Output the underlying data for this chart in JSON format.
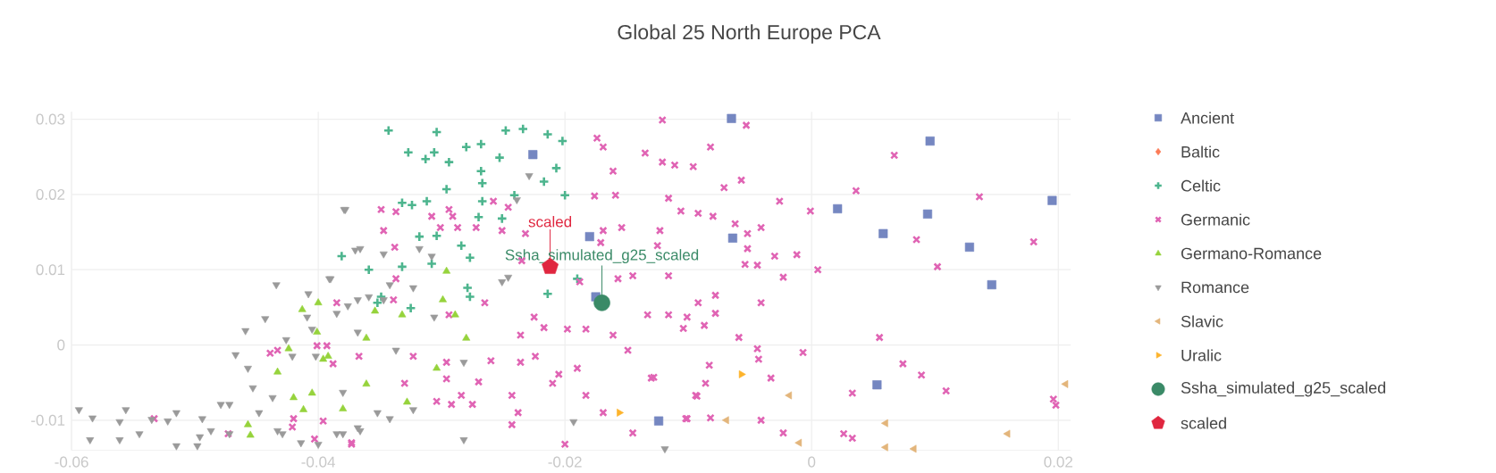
{
  "chart_data": {
    "type": "scatter",
    "title": "Global 25 North Europe PCA",
    "xlim": [
      -0.06,
      0.021
    ],
    "ylim": [
      -0.014,
      0.031
    ],
    "xticks": [
      -0.06,
      -0.04,
      -0.02,
      0,
      0.02
    ],
    "yticks": [
      -0.01,
      0,
      0.01,
      0.02,
      0.03
    ],
    "grid": true,
    "legend": "right",
    "annotations": [
      {
        "text": "scaled",
        "x": -0.0212,
        "y": 0.0104
      },
      {
        "text": "Ssha_simulated_g25_scaled",
        "x": -0.017,
        "y": 0.0056
      }
    ],
    "series": [
      {
        "name": "Ancient",
        "color": "#7587c1",
        "marker": "square",
        "x": [
          -0.0065,
          0.0096,
          0.0021,
          0.0094,
          0.0058,
          0.0128,
          0.0146,
          0.0195,
          -0.0064,
          0.0053,
          -0.0226,
          -0.018,
          -0.0175,
          -0.0124
        ],
        "values": [
          0.0301,
          0.0271,
          0.0181,
          0.0174,
          0.0148,
          0.013,
          0.008,
          0.0192,
          0.0142,
          -0.0053,
          0.0253,
          0.0144,
          0.0064,
          -0.0101
        ]
      },
      {
        "name": "Baltic",
        "color": "#fc7b56",
        "marker": "diamond"
      },
      {
        "name": "Celtic",
        "color": "#4db58e",
        "marker": "plus",
        "x": [
          -0.0381,
          -0.0304,
          -0.028,
          -0.0268,
          -0.0248,
          -0.0234,
          -0.0214,
          -0.0202,
          -0.0313,
          -0.0294,
          -0.0306,
          -0.0253,
          -0.0268,
          -0.0207,
          -0.0217,
          -0.0332,
          -0.0324,
          -0.0312,
          -0.0296,
          -0.0267,
          -0.0241,
          -0.02,
          -0.0267,
          -0.0318,
          -0.0304,
          -0.027,
          -0.0251,
          -0.0284,
          -0.0277,
          -0.0308,
          -0.0332,
          -0.0359,
          -0.019,
          -0.0214,
          -0.0279,
          -0.0277,
          -0.0325,
          -0.0349,
          -0.0352,
          -0.0343,
          -0.0327
        ],
        "values": [
          0.0118,
          0.0283,
          0.0263,
          0.0267,
          0.0285,
          0.0287,
          0.028,
          0.0271,
          0.0247,
          0.0243,
          0.0256,
          0.0249,
          0.0231,
          0.0235,
          0.0217,
          0.0189,
          0.0186,
          0.0191,
          0.0207,
          0.0215,
          0.0199,
          0.0199,
          0.0191,
          0.0144,
          0.0145,
          0.017,
          0.0168,
          0.0132,
          0.0116,
          0.0108,
          0.0104,
          0.01,
          0.0088,
          0.0068,
          0.0076,
          0.0064,
          0.0049,
          0.0064,
          0.0056,
          0.0285,
          0.0256
        ]
      },
      {
        "name": "Germanic",
        "color": "#e064b4",
        "marker": "cross",
        "x": [
          -0.0533,
          -0.0473,
          -0.0439,
          -0.0433,
          -0.042,
          -0.0421,
          -0.0401,
          -0.0393,
          -0.0388,
          -0.0385,
          -0.0403,
          -0.0396,
          -0.0373,
          -0.0367,
          -0.0349,
          -0.0337,
          -0.0347,
          -0.0338,
          -0.0308,
          -0.0294,
          -0.0291,
          -0.0301,
          -0.0287,
          -0.0272,
          -0.0258,
          -0.0246,
          -0.0251,
          -0.0232,
          -0.0235,
          -0.0337,
          -0.0339,
          -0.0294,
          -0.0265,
          -0.0323,
          -0.0296,
          -0.033,
          -0.0304,
          -0.0292,
          -0.0275,
          -0.027,
          -0.026,
          -0.0243,
          -0.0238,
          -0.0236,
          -0.0224,
          -0.0225,
          -0.0217,
          -0.0205,
          -0.021,
          -0.019,
          -0.0198,
          -0.0183,
          -0.0169,
          -0.0161,
          -0.0149,
          -0.0157,
          -0.0145,
          -0.0128,
          -0.0121,
          -0.0174,
          -0.0169,
          -0.0161,
          -0.0135,
          -0.0121,
          -0.0111,
          -0.0096,
          -0.0082,
          -0.0176,
          -0.0159,
          -0.0116,
          -0.0106,
          -0.0092,
          -0.0169,
          -0.0154,
          -0.0123,
          -0.0125,
          -0.0188,
          -0.0171,
          -0.0116,
          -0.0101,
          -0.0092,
          -0.0133,
          -0.0116,
          -0.0183,
          -0.013,
          -0.0094,
          -0.0101,
          -0.0145,
          -0.02,
          -0.0243,
          -0.0373,
          -0.0296,
          -0.0284,
          -0.0236,
          -0.0053,
          -0.0057,
          -0.0071,
          -0.0026,
          -0.0001,
          0.0036,
          0.0067,
          0.0136,
          -0.008,
          -0.0062,
          -0.0052,
          -0.0041,
          -0.0052,
          -0.0054,
          -0.0044,
          -0.003,
          -0.0012,
          -0.0023,
          0.0005,
          0.0085,
          0.0102,
          0.018,
          -0.0078,
          -0.0078,
          -0.0041,
          -0.0087,
          -0.0104,
          -0.0059,
          -0.0044,
          -0.0043,
          -0.0007,
          0.0055,
          0.0074,
          0.0089,
          0.0109,
          -0.0083,
          -0.0086,
          -0.0093,
          -0.0033,
          0.0033,
          -0.0102,
          -0.0082,
          -0.0041,
          -0.0023,
          0.0026,
          0.0033,
          0.0196,
          0.0198
        ],
        "values": [
          -0.0098,
          -0.0118,
          -0.0011,
          -0.0007,
          -0.0098,
          -0.0109,
          -0.0001,
          -0.0001,
          -0.0025,
          0.0056,
          -0.0125,
          -0.0101,
          -0.013,
          -0.0015,
          0.018,
          0.0177,
          0.0152,
          0.013,
          0.0171,
          0.018,
          0.0171,
          0.0156,
          0.0156,
          0.0156,
          0.0191,
          0.0183,
          0.0152,
          0.0148,
          0.0112,
          0.0088,
          0.006,
          0.004,
          0.0056,
          -0.0015,
          -0.0023,
          -0.0051,
          -0.0075,
          -0.0079,
          -0.0079,
          -0.0049,
          -0.0021,
          -0.0067,
          -0.009,
          -0.0023,
          -0.0015,
          0.0037,
          0.0023,
          -0.0039,
          -0.0051,
          -0.0031,
          0.0021,
          -0.0067,
          -0.009,
          0.0013,
          -0.0007,
          0.0088,
          0.0092,
          -0.0043,
          0.0299,
          0.0275,
          0.0263,
          0.0231,
          0.0255,
          0.0243,
          0.0239,
          0.0237,
          0.0263,
          0.0198,
          0.0199,
          0.0195,
          0.0178,
          0.0175,
          0.0152,
          0.0156,
          0.0152,
          0.0132,
          0.0084,
          0.0136,
          0.0092,
          0.0037,
          0.0056,
          0.004,
          0.004,
          0.0021,
          -0.0044,
          -0.0067,
          -0.0098,
          -0.0117,
          -0.0132,
          -0.0106,
          -0.0132,
          -0.0045,
          -0.0067,
          0.0013,
          0.0292,
          0.0219,
          0.0209,
          0.0191,
          0.0178,
          0.0205,
          0.0252,
          0.0197,
          0.0171,
          0.0161,
          0.0148,
          0.0156,
          0.0128,
          0.0107,
          0.0106,
          0.0118,
          0.012,
          0.009,
          0.01,
          0.014,
          0.0104,
          0.0137,
          0.0066,
          0.0042,
          0.0056,
          0.0026,
          0.0022,
          0.001,
          -0.0005,
          -0.0019,
          -0.001,
          0.001,
          -0.0025,
          -0.004,
          -0.0061,
          -0.0027,
          -0.0051,
          -0.0068,
          -0.0044,
          -0.0064,
          -0.0098,
          -0.0097,
          -0.01,
          -0.0117,
          -0.0118,
          -0.0124,
          -0.0072,
          -0.008
        ]
      },
      {
        "name": "Germano-Romance",
        "color": "#96d33c",
        "marker": "triangle",
        "x": [
          -0.04,
          -0.0413,
          -0.0401,
          -0.0396,
          -0.0424,
          -0.0433,
          -0.042,
          -0.0405,
          -0.0412,
          -0.038,
          -0.0457,
          -0.0455,
          -0.0296,
          -0.0299,
          -0.0289,
          -0.0354,
          -0.0332,
          -0.0361,
          -0.028,
          -0.0304,
          -0.0361,
          -0.0328,
          -0.0392
        ],
        "values": [
          0.0056,
          0.0047,
          0.0017,
          -0.0019,
          -0.0005,
          -0.0036,
          -0.007,
          -0.0064,
          -0.0086,
          -0.0085,
          -0.0106,
          -0.012,
          0.0098,
          0.006,
          0.004,
          0.0045,
          0.004,
          0.0009,
          0.0009,
          -0.0031,
          -0.0052,
          -0.0076,
          -0.0015
        ]
      },
      {
        "name": "Romance",
        "color": "#9a9a9a",
        "marker": "triangle-down",
        "x": [
          -0.0594,
          -0.0585,
          -0.0583,
          -0.0561,
          -0.0556,
          -0.0561,
          -0.0545,
          -0.0535,
          -0.0522,
          -0.0515,
          -0.0515,
          -0.0498,
          -0.0496,
          -0.0494,
          -0.0487,
          -0.0479,
          -0.0472,
          -0.0472,
          -0.0467,
          -0.0459,
          -0.0457,
          -0.0453,
          -0.0448,
          -0.0443,
          -0.0437,
          -0.0434,
          -0.0433,
          -0.0429,
          -0.0426,
          -0.0421,
          -0.0414,
          -0.0408,
          -0.0409,
          -0.0405,
          -0.0402,
          -0.04,
          -0.0391,
          -0.0385,
          -0.0379,
          -0.038,
          -0.038,
          -0.0368,
          -0.037,
          -0.0368,
          -0.0368,
          -0.0378,
          -0.039,
          -0.0229,
          -0.0366,
          -0.0347,
          -0.0318,
          -0.0308,
          -0.0342,
          -0.0323,
          -0.0376,
          -0.0359,
          -0.0347,
          -0.0306,
          -0.0337,
          -0.0282,
          -0.0352,
          -0.0342,
          -0.0323,
          -0.0366,
          -0.0385,
          -0.0282,
          -0.0251,
          -0.0246,
          -0.0193,
          -0.0119,
          -0.0239
        ],
        "values": [
          -0.0086,
          -0.0126,
          -0.0097,
          -0.0102,
          -0.0086,
          -0.0126,
          -0.0118,
          -0.0099,
          -0.0101,
          -0.009,
          -0.0134,
          -0.0134,
          -0.0122,
          -0.0098,
          -0.0114,
          -0.0079,
          -0.0079,
          -0.0118,
          -0.0013,
          0.0019,
          -0.0031,
          -0.0057,
          -0.009,
          0.0035,
          -0.007,
          0.008,
          -0.0114,
          -0.0118,
          0.0007,
          -0.0015,
          -0.013,
          0.0068,
          0.0037,
          0.0021,
          -0.0015,
          -0.0132,
          0.0088,
          0.0042,
          0.018,
          -0.0063,
          -0.0118,
          0.006,
          0.0126,
          0.0017,
          -0.011,
          0.018,
          0.0088,
          0.0225,
          0.0128,
          0.0121,
          0.0128,
          0.0118,
          0.008,
          0.0076,
          0.0052,
          0.0064,
          0.006,
          0.0037,
          -0.0007,
          -0.0023,
          -0.009,
          -0.0098,
          -0.0086,
          -0.0114,
          -0.0118,
          -0.0126,
          0.0084,
          0.009,
          -0.0102,
          -0.0138,
          0.0193
        ]
      },
      {
        "name": "Slavic",
        "color": "#e3b57b",
        "marker": "triangle-left",
        "x": [
          -0.0018,
          -0.0069,
          0.006,
          0.0159,
          0.0206,
          -0.001,
          0.006,
          0.0083
        ],
        "values": [
          -0.0067,
          -0.01,
          -0.0104,
          -0.0118,
          -0.0052,
          -0.013,
          -0.0136,
          -0.0138
        ]
      },
      {
        "name": "Uralic",
        "color": "#fdb32b",
        "marker": "triangle-right",
        "x": [
          -0.0057,
          -0.0156
        ],
        "values": [
          -0.0039,
          -0.009
        ]
      },
      {
        "name": "Ssha_simulated_g25_scaled",
        "color": "#3a8a67",
        "marker": "circle",
        "x": [
          -0.017
        ],
        "values": [
          0.0056
        ]
      },
      {
        "name": "scaled",
        "color": "#e0263f",
        "x": [
          -0.0212
        ],
        "values": [
          0.0104
        ]
      }
    ]
  }
}
